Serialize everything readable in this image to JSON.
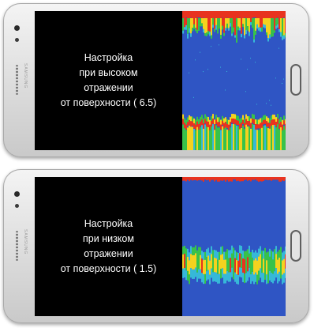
{
  "phones": [
    {
      "caption_lines": [
        "Настройка",
        "при высоком",
        "отражении",
        "от поверхности ( 6.5)"
      ],
      "sonar": {
        "variant": "high",
        "colors": {
          "water": "#2f55c4",
          "return_red": "#e8331f",
          "return_yellow": "#f4d21f",
          "return_green": "#37c24a",
          "return_cyan": "#36b8d8"
        }
      }
    },
    {
      "caption_lines": [
        "Настройка",
        "при низком",
        "отражении",
        "от поверхности ( 1.5)"
      ],
      "sonar": {
        "variant": "low",
        "colors": {
          "water": "#2f55c4",
          "return_red": "#e8331f",
          "return_yellow": "#f4d21f",
          "return_green": "#37c24a",
          "return_cyan": "#36b8d8"
        }
      }
    }
  ]
}
